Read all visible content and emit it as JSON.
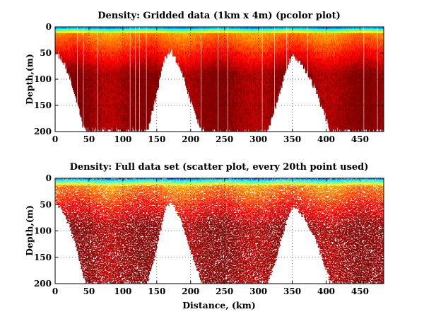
{
  "chart_data": [
    {
      "type": "heatmap",
      "style": "pcolor",
      "title": "Density: Gridded data (1km x 4m) (pcolor plot)",
      "xlabel": "",
      "ylabel": "Depth,(m)",
      "xlim": [
        0,
        485
      ],
      "ylim": [
        200,
        0
      ],
      "xticks": [
        "0",
        "50",
        "100",
        "150",
        "200",
        "250",
        "300",
        "350",
        "400",
        "450"
      ],
      "yticks": [
        "0",
        "50",
        "100",
        "150",
        "200"
      ],
      "grid": "dotted",
      "colormap": "jet",
      "seafloor_profile": {
        "distance_km": [
          0,
          10,
          20,
          30,
          40,
          45,
          60,
          100,
          135,
          145,
          160,
          170,
          185,
          200,
          215,
          222,
          240,
          280,
          312,
          325,
          340,
          350,
          365,
          385,
          405,
          420,
          460,
          485
        ],
        "max_depth_m": [
          45,
          60,
          90,
          130,
          185,
          197,
          197,
          197,
          197,
          150,
          60,
          40,
          80,
          140,
          195,
          200,
          200,
          200,
          200,
          150,
          80,
          50,
          70,
          120,
          195,
          198,
          198,
          198
        ]
      }
    },
    {
      "type": "scatter",
      "style": "scatter, every 20th point used",
      "title": "Density: Full data set (scatter plot, every 20th point used)",
      "xlabel": "Distance, (km)",
      "ylabel": "Depth,(m)",
      "xlim": [
        0,
        485
      ],
      "ylim": [
        200,
        0
      ],
      "xticks": [
        "0",
        "50",
        "100",
        "150",
        "200",
        "250",
        "300",
        "350",
        "400",
        "450"
      ],
      "yticks": [
        "0",
        "50",
        "100",
        "150",
        "200"
      ],
      "grid": "dotted",
      "colormap": "jet",
      "seafloor_profile": {
        "distance_km": [
          0,
          10,
          20,
          30,
          40,
          45,
          60,
          100,
          135,
          145,
          160,
          170,
          185,
          200,
          215,
          222,
          240,
          280,
          312,
          325,
          340,
          350,
          365,
          385,
          405,
          420,
          460,
          485
        ],
        "max_depth_m": [
          45,
          60,
          90,
          130,
          185,
          197,
          197,
          197,
          197,
          150,
          60,
          40,
          80,
          140,
          195,
          200,
          200,
          200,
          200,
          150,
          80,
          50,
          70,
          120,
          195,
          198,
          198,
          198
        ]
      }
    }
  ]
}
